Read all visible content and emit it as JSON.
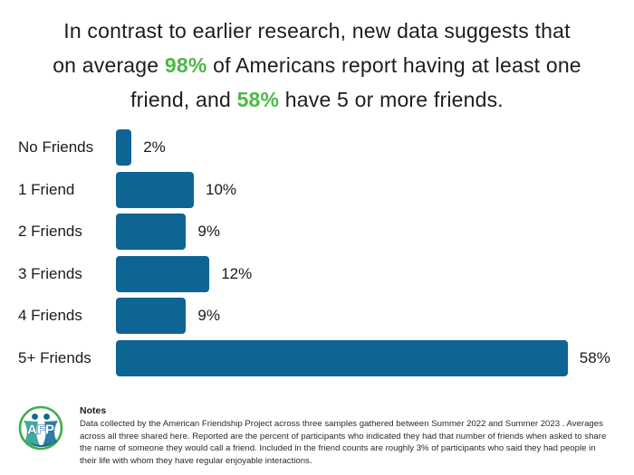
{
  "title": {
    "line1": "In contrast to earlier research, new data suggests that",
    "line2_pre": "on average ",
    "line2_highlight": "98%",
    "line2_post": " of Americans report having at least one",
    "line3_pre": "friend, and ",
    "line3_highlight": "58%",
    "line3_post": " have 5 or more friends."
  },
  "colors": {
    "bar": "#0E6593",
    "highlight_green": "#4DB848",
    "logo_ring_green": "#3FAE49",
    "logo_blue": "#0E6593",
    "logo_teal": "#2E9E8F"
  },
  "chart_data": {
    "type": "bar",
    "orientation": "horizontal",
    "categories": [
      "No Friends",
      "1 Friend",
      "2 Friends",
      "3 Friends",
      "4 Friends",
      "5+ Friends"
    ],
    "values": [
      2,
      10,
      9,
      12,
      9,
      58
    ],
    "value_labels": [
      "2%",
      "10%",
      "9%",
      "12%",
      "9%",
      "58%"
    ],
    "title": "",
    "xlabel": "",
    "ylabel": "",
    "xlim": [
      0,
      60
    ],
    "grid": false,
    "legend": false
  },
  "notes": {
    "heading": "Notes",
    "body": "Data collected by the American Friendship Project across three samples gathered between Summer 2022 and Summer 2023 . Averages across all three shared here. Reported are the percent of participants who indicated they had that number of friends when asked to share the name of someone they would call a friend. Included in the friend counts are roughly 3% of participants who said they had people in their life with whom they have regular enjoyable interactions.",
    "logo_text": "AFP"
  }
}
